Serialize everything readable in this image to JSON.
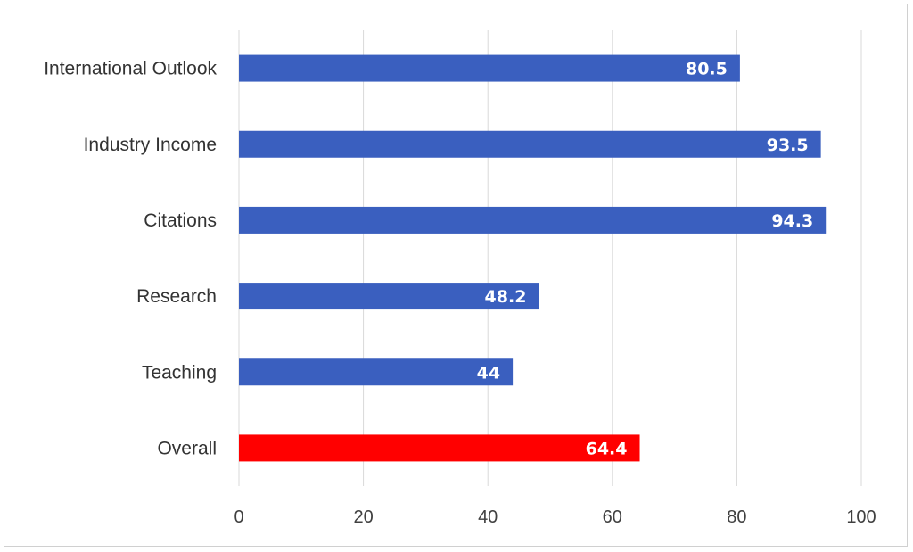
{
  "chart_data": {
    "type": "bar",
    "orientation": "horizontal",
    "title": "",
    "xlabel": "",
    "ylabel": "",
    "categories": [
      "International Outlook",
      "Industry Income",
      "Citations",
      "Research",
      "Teaching",
      "Overall"
    ],
    "values": [
      80.5,
      93.5,
      94.3,
      48.2,
      44,
      64.4
    ],
    "data_labels": [
      "80.5",
      "93.5",
      "94.3",
      "48.2",
      "44",
      "64.4"
    ],
    "bar_colors": [
      "#3a5fbf",
      "#3a5fbf",
      "#3a5fbf",
      "#3a5fbf",
      "#3a5fbf",
      "#ff0000"
    ],
    "xlim": [
      0,
      100
    ],
    "xticks": [
      0,
      20,
      40,
      60,
      80,
      100
    ],
    "xtick_labels": [
      "0",
      "20",
      "40",
      "60",
      "80",
      "100"
    ],
    "grid": "vertical",
    "legend": "none"
  }
}
